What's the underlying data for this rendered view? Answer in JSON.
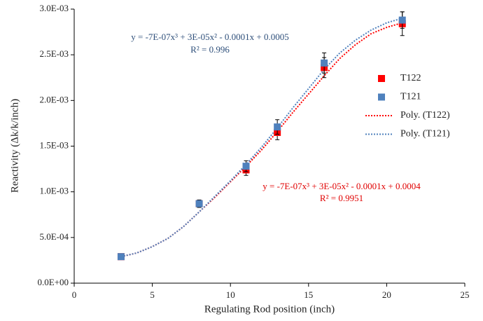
{
  "chart_data": {
    "type": "scatter",
    "x_label": "Regulating Rod position (inch)",
    "y_label": "Reactivity (Δk/k/inch)",
    "xlim": [
      0,
      25
    ],
    "xticks": [
      0,
      5,
      10,
      15,
      20,
      25
    ],
    "ylim": [
      0,
      0.003
    ],
    "yticks": [
      {
        "value": 0,
        "label": "0.0E+00"
      },
      {
        "value": 0.0005,
        "label": "5.0E-04"
      },
      {
        "value": 0.001,
        "label": "1.0E-03"
      },
      {
        "value": 0.0015,
        "label": "1.5E-03"
      },
      {
        "value": 0.002,
        "label": "2.0E-03"
      },
      {
        "value": 0.0025,
        "label": "2.5E-03"
      },
      {
        "value": 0.003,
        "label": "3.0E-03"
      }
    ],
    "series": [
      {
        "name": "T122",
        "color": "#ff0000",
        "x": [
          3,
          8,
          11,
          13,
          16,
          21
        ],
        "values": [
          0.00029,
          0.00087,
          0.00124,
          0.00165,
          0.00236,
          0.00284
        ],
        "errors": [
          1e-05,
          4e-05,
          6e-05,
          8e-05,
          0.00011,
          0.00013
        ]
      },
      {
        "name": "T121",
        "color": "#4f81bd",
        "x": [
          3,
          8,
          11,
          13,
          16,
          21
        ],
        "values": [
          0.00029,
          0.00087,
          0.00128,
          0.00171,
          0.00241,
          0.00288
        ],
        "errors": [
          1e-05,
          4e-05,
          6e-05,
          8e-05,
          0.00011,
          9e-05
        ]
      }
    ],
    "trendlines": [
      {
        "name": "Poly. (T122)",
        "color": "#ff0000",
        "x": [
          3,
          4,
          5,
          6,
          7,
          8,
          9,
          10,
          11,
          12,
          13,
          14,
          15,
          16,
          17,
          18,
          19,
          20,
          21
        ],
        "values": [
          0.00029,
          0.00033,
          0.0004,
          0.00049,
          0.00062,
          0.00078,
          0.00094,
          0.00111,
          0.00128,
          0.00146,
          0.00166,
          0.00187,
          0.00207,
          0.00227,
          0.00246,
          0.00261,
          0.00273,
          0.0028,
          0.00285
        ],
        "equation": "y = -7E-07x³ + 3E-05x² - 0.0001x + 0.0004",
        "r_squared": "R² = 0.9951"
      },
      {
        "name": "Poly. (T121)",
        "color": "#4f81bd",
        "x": [
          3,
          4,
          5,
          6,
          7,
          8,
          9,
          10,
          11,
          12,
          13,
          14,
          15,
          16,
          17,
          18,
          19,
          20,
          21
        ],
        "values": [
          0.00029,
          0.00033,
          0.0004,
          0.00049,
          0.00062,
          0.00078,
          0.00095,
          0.00112,
          0.0013,
          0.00149,
          0.0017,
          0.00192,
          0.00213,
          0.00234,
          0.00252,
          0.00266,
          0.00277,
          0.00285,
          0.0029
        ],
        "equation": "y = -7E-07x³ + 3E-05x² - 0.0001x + 0.0005",
        "r_squared": "R² = 0.996"
      }
    ]
  }
}
